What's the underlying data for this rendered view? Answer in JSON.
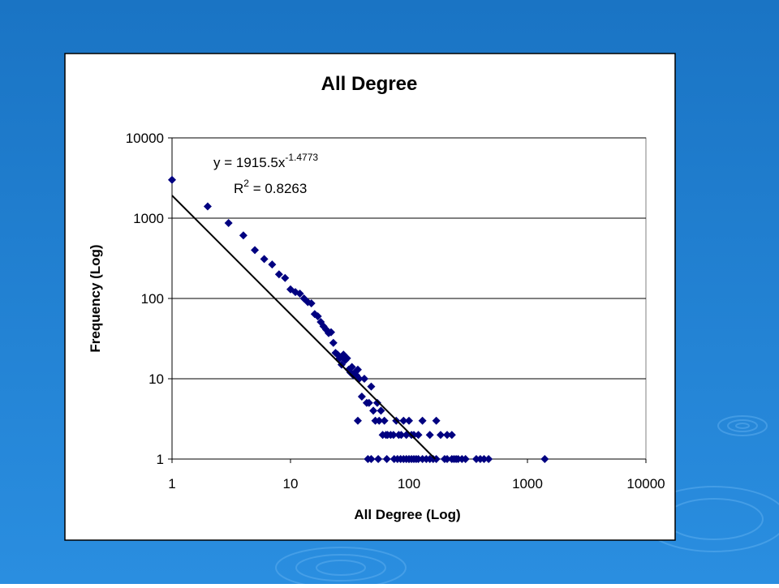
{
  "chart_data": {
    "type": "scatter",
    "title": "All Degree",
    "xlabel": "All Degree (Log)",
    "ylabel": "Frequency (Log)",
    "equation_text": "y = 1915.5x",
    "equation_exponent": "-1.4773",
    "r2_letter": "R",
    "r2_power": "2",
    "r2_text": " = 0.8263",
    "trendline": {
      "coefficient": 1915.5,
      "exponent": -1.4773
    },
    "xscale": "log",
    "yscale": "log",
    "grid": "y",
    "color": "#000080",
    "xlim": [
      1,
      10000
    ],
    "ylim": [
      1,
      10000
    ],
    "xticks": [
      1,
      10,
      100,
      1000,
      10000
    ],
    "yticks": [
      1,
      10,
      100,
      1000,
      10000
    ],
    "x": [
      1,
      2,
      3,
      4,
      5,
      6,
      7,
      8,
      9,
      10,
      11,
      12,
      13,
      14,
      15,
      16,
      17,
      18,
      19,
      20,
      21,
      22,
      23,
      24,
      25,
      26,
      27,
      28,
      29,
      30,
      31,
      32,
      33,
      34,
      35,
      36,
      37,
      38,
      40,
      42,
      44,
      46,
      48,
      50,
      52,
      54,
      56,
      58,
      60,
      62,
      64,
      66,
      70,
      74,
      78,
      82,
      86,
      90,
      95,
      100,
      105,
      110,
      120,
      130,
      150,
      170,
      185,
      210,
      230,
      37,
      45,
      48,
      55,
      65,
      75,
      80,
      85,
      90,
      95,
      100,
      105,
      110,
      115,
      120,
      130,
      140,
      150,
      160,
      170,
      200,
      210,
      230,
      240,
      250,
      260,
      280,
      300,
      370,
      400,
      430,
      470,
      1400
    ],
    "values": [
      3000,
      1400,
      870,
      610,
      400,
      310,
      265,
      200,
      180,
      130,
      120,
      115,
      100,
      90,
      87,
      64,
      60,
      51,
      45,
      41,
      37,
      38,
      28,
      21,
      20,
      18,
      15,
      20,
      17,
      18,
      13,
      12,
      14,
      11,
      12,
      11,
      13,
      10,
      6,
      10,
      5,
      5,
      8,
      4,
      3,
      5,
      3,
      4,
      2,
      3,
      2,
      2,
      2,
      2,
      3,
      2,
      2,
      3,
      2,
      3,
      2,
      2,
      2,
      3,
      2,
      3,
      2,
      2,
      2,
      3,
      1,
      1,
      1,
      1,
      1,
      1,
      1,
      1,
      1,
      1,
      1,
      1,
      1,
      1,
      1,
      1,
      1,
      1,
      1,
      1,
      1,
      1,
      1,
      1,
      1,
      1,
      1,
      1,
      1,
      1,
      1,
      1
    ]
  }
}
